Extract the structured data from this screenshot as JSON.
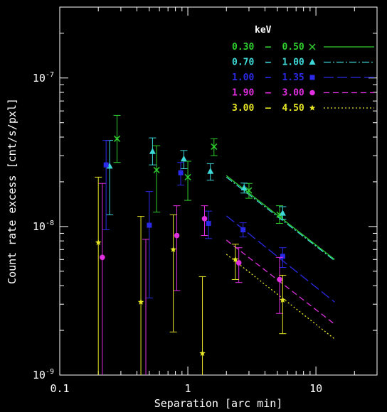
{
  "chart_data": {
    "type": "scatter",
    "xlabel": "Separation [arc min]",
    "ylabel": "Count rate excess [cnt/s/pxl]",
    "xscale": "log",
    "yscale": "log",
    "xlim": [
      0.1,
      30
    ],
    "ylim": [
      1e-09,
      3e-07
    ],
    "x_tick_labels": [
      {
        "value": 0.1,
        "label": "0.1"
      },
      {
        "value": 1,
        "label": "1"
      },
      {
        "value": 10,
        "label": "10"
      }
    ],
    "y_tick_labels": [
      {
        "value": 1e-09,
        "base": "10",
        "exp": "-9"
      },
      {
        "value": 1e-08,
        "base": "10",
        "exp": "-8"
      },
      {
        "value": 1e-07,
        "base": "10",
        "exp": "-7"
      }
    ],
    "legend": {
      "title": "keV",
      "placement": "top-right"
    },
    "series": [
      {
        "name": "0.30  –  0.50",
        "color": "#2fd02f",
        "marker": "cross",
        "dash": "solid",
        "points": [
          {
            "x": 0.28,
            "y": 3.9e-08,
            "ylo": 2.7e-08,
            "yhi": 5.6e-08
          },
          {
            "x": 0.57,
            "y": 2.4e-08,
            "ylo": 1.25e-08,
            "yhi": 3.5e-08
          },
          {
            "x": 1.0,
            "y": 2.15e-08,
            "ylo": 1.5e-08,
            "yhi": 2.75e-08
          },
          {
            "x": 1.6,
            "y": 3.45e-08,
            "ylo": 3e-08,
            "yhi": 3.9e-08
          },
          {
            "x": 3.0,
            "y": 1.75e-08,
            "ylo": 1.55e-08,
            "yhi": 1.95e-08
          },
          {
            "x": 5.2,
            "y": 1.2e-08,
            "ylo": 1.05e-08,
            "yhi": 1.38e-08
          }
        ],
        "fit": {
          "x": [
            2.0,
            14.0
          ],
          "y": [
            2.2e-08,
            6e-09
          ]
        }
      },
      {
        "name": "0.70  –  1.00",
        "color": "#3ed8d8",
        "marker": "triangle",
        "dash": "dash-dot",
        "points": [
          {
            "x": 0.245,
            "y": 2.55e-08,
            "ylo": 1.2e-08,
            "yhi": 3.8e-08
          },
          {
            "x": 0.53,
            "y": 3.2e-08,
            "ylo": 2.6e-08,
            "yhi": 3.95e-08
          },
          {
            "x": 0.93,
            "y": 2.85e-08,
            "ylo": 2.45e-08,
            "yhi": 3.25e-08
          },
          {
            "x": 1.5,
            "y": 2.35e-08,
            "ylo": 2.05e-08,
            "yhi": 2.65e-08
          },
          {
            "x": 2.75,
            "y": 1.82e-08,
            "ylo": 1.68e-08,
            "yhi": 1.96e-08
          },
          {
            "x": 5.5,
            "y": 1.23e-08,
            "ylo": 1.12e-08,
            "yhi": 1.36e-08
          }
        ],
        "fit": {
          "x": [
            2.0,
            14.0
          ],
          "y": [
            2.15e-08,
            5.9e-09
          ]
        }
      },
      {
        "name": "1.00  –  1.35",
        "color": "#2a2ae8",
        "marker": "square",
        "dash": "long-dash",
        "points": [
          {
            "x": 0.23,
            "y": 2.6e-08,
            "ylo": 9.5e-09,
            "yhi": 3.8e-08
          },
          {
            "x": 0.5,
            "y": 1.02e-08,
            "ylo": 3.3e-09,
            "yhi": 1.72e-08
          },
          {
            "x": 0.88,
            "y": 2.3e-08,
            "ylo": 1.9e-08,
            "yhi": 2.7e-08
          },
          {
            "x": 1.45,
            "y": 1.05e-08,
            "ylo": 8.3e-09,
            "yhi": 1.27e-08
          },
          {
            "x": 2.7,
            "y": 9.5e-09,
            "ylo": 8.5e-09,
            "yhi": 1.06e-08
          },
          {
            "x": 5.5,
            "y": 6.3e-09,
            "ylo": 5.3e-09,
            "yhi": 7.2e-09
          }
        ],
        "fit": {
          "x": [
            2.0,
            14.0
          ],
          "y": [
            1.18e-08,
            3.1e-09
          ]
        }
      },
      {
        "name": "1.90  –  3.00",
        "color": "#e030e0",
        "marker": "circle",
        "dash": "dash",
        "points": [
          {
            "x": 0.215,
            "y": 6.2e-09,
            "ylo": 1e-09,
            "yhi": 1.95e-08
          },
          {
            "x": 0.47,
            "y": 1e-09,
            "ylo": 1e-09,
            "yhi": 8.2e-09
          },
          {
            "x": 0.82,
            "y": 8.7e-09,
            "ylo": 3.7e-09,
            "yhi": 1.38e-08
          },
          {
            "x": 1.35,
            "y": 1.13e-08,
            "ylo": 8.7e-09,
            "yhi": 1.38e-08
          },
          {
            "x": 2.5,
            "y": 5.7e-09,
            "ylo": 4.2e-09,
            "yhi": 7.2e-09
          },
          {
            "x": 5.2,
            "y": 4.4e-09,
            "ylo": 2.6e-09,
            "yhi": 6.2e-09
          }
        ],
        "fit": {
          "x": [
            2.0,
            14.0
          ],
          "y": [
            8.1e-09,
            2.2e-09
          ]
        }
      },
      {
        "name": "3.00  –  4.50",
        "color": "#e6e626",
        "marker": "star",
        "dash": "dot",
        "points": [
          {
            "x": 0.2,
            "y": 7.8e-09,
            "ylo": 1e-09,
            "yhi": 2.15e-08
          },
          {
            "x": 0.43,
            "y": 3.1e-09,
            "ylo": 1e-09,
            "yhi": 1.17e-08
          },
          {
            "x": 0.77,
            "y": 7e-09,
            "ylo": 1.95e-09,
            "yhi": 1.2e-08
          },
          {
            "x": 1.3,
            "y": 1.4e-09,
            "ylo": 1e-09,
            "yhi": 4.6e-09
          },
          {
            "x": 2.35,
            "y": 6e-09,
            "ylo": 4.4e-09,
            "yhi": 7.6e-09
          },
          {
            "x": 5.5,
            "y": 3.2e-09,
            "ylo": 1.9e-09,
            "yhi": 4.7e-09
          }
        ],
        "fit": {
          "x": [
            2.0,
            14.0
          ],
          "y": [
            6.5e-09,
            1.75e-09
          ]
        }
      }
    ]
  }
}
